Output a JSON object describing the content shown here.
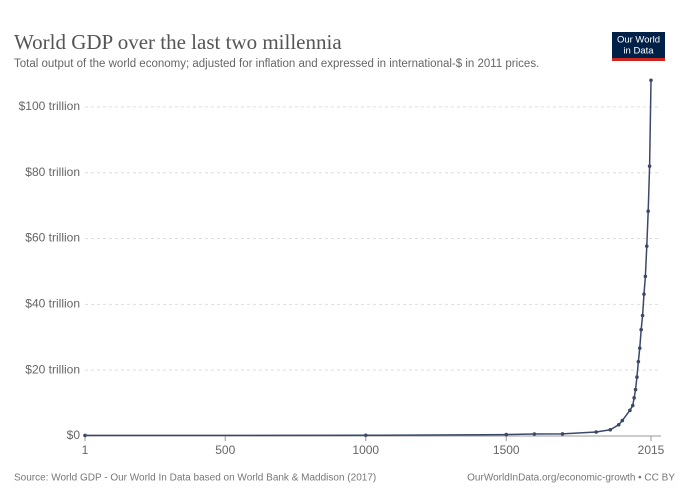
{
  "chart_data": {
    "type": "line",
    "title": "World GDP over the last two millennia",
    "subtitle": "Total output of the world economy; adjusted for inflation and expressed in international-$ in 2011 prices.",
    "source": "Source: World GDP - Our World In Data based on World Bank & Maddison (2017)",
    "license": "OurWorldInData.org/economic-growth • CC BY",
    "logo": [
      "Our World",
      "in Data"
    ],
    "x": [
      1,
      1000,
      1500,
      1600,
      1700,
      1820,
      1870,
      1900,
      1913,
      1940,
      1950,
      1955,
      1960,
      1965,
      1970,
      1975,
      1980,
      1985,
      1990,
      1995,
      2000,
      2005,
      2010,
      2015
    ],
    "series": [
      {
        "name": "World GDP",
        "color": "#3b4868",
        "values": [
          0.18,
          0.21,
          0.43,
          0.6,
          0.64,
          1.2,
          1.9,
          3.4,
          4.7,
          7.8,
          9.25,
          11.6,
          14.1,
          17.9,
          22.6,
          26.7,
          32.3,
          36.6,
          43.1,
          48.5,
          57.7,
          68.3,
          82.0,
          108.1
        ]
      }
    ],
    "xlim": [
      1,
      2015
    ],
    "xticks": [
      1,
      500,
      1000,
      1500,
      2015
    ],
    "ylim": [
      0,
      110
    ],
    "yticks": [
      {
        "value": 0,
        "label": "$0"
      },
      {
        "value": 20,
        "label": "$20 trillion"
      },
      {
        "value": 40,
        "label": "$40 trillion"
      },
      {
        "value": 60,
        "label": "$60 trillion"
      },
      {
        "value": 80,
        "label": "$80 trillion"
      },
      {
        "value": 100,
        "label": "$100 trillion"
      }
    ],
    "grid": true
  }
}
